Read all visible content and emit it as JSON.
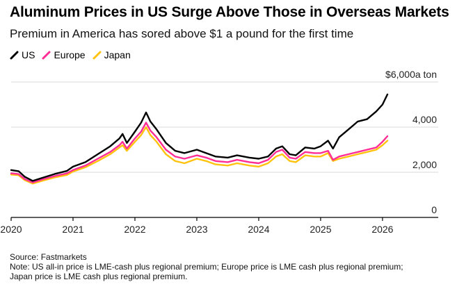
{
  "chart_data": {
    "type": "line",
    "title": "Aluminum Prices in US Surge Above Those in Overseas Markets",
    "subtitle": "Premium in America has sored above $1 a pound for the first time",
    "unit_label": "a ton",
    "ylim": [
      0,
      6000
    ],
    "xlim": [
      2020,
      2026.9
    ],
    "y_ticks": [
      {
        "value": 6000,
        "label": "$6,000"
      },
      {
        "value": 4000,
        "label": "4,000"
      },
      {
        "value": 2000,
        "label": "2,000"
      },
      {
        "value": 0,
        "label": "0"
      }
    ],
    "x_ticks": [
      {
        "value": 2020,
        "label": "2020"
      },
      {
        "value": 2021,
        "label": "2021"
      },
      {
        "value": 2022,
        "label": "2022"
      },
      {
        "value": 2023,
        "label": "2023"
      },
      {
        "value": 2024,
        "label": "2024"
      },
      {
        "value": 2025,
        "label": "2025"
      },
      {
        "value": 2026,
        "label": "2026"
      }
    ],
    "series": [
      {
        "name": "US",
        "color": "#000000",
        "points": [
          [
            2020.0,
            2100
          ],
          [
            2020.12,
            2050
          ],
          [
            2020.22,
            1800
          ],
          [
            2020.35,
            1620
          ],
          [
            2020.5,
            1750
          ],
          [
            2020.7,
            1920
          ],
          [
            2020.9,
            2060
          ],
          [
            2021.0,
            2250
          ],
          [
            2021.2,
            2450
          ],
          [
            2021.4,
            2800
          ],
          [
            2021.6,
            3150
          ],
          [
            2021.75,
            3500
          ],
          [
            2021.8,
            3700
          ],
          [
            2021.87,
            3300
          ],
          [
            2022.0,
            3800
          ],
          [
            2022.1,
            4200
          ],
          [
            2022.18,
            4650
          ],
          [
            2022.25,
            4250
          ],
          [
            2022.35,
            3900
          ],
          [
            2022.5,
            3300
          ],
          [
            2022.65,
            2950
          ],
          [
            2022.8,
            2850
          ],
          [
            2023.0,
            3000
          ],
          [
            2023.15,
            2850
          ],
          [
            2023.3,
            2700
          ],
          [
            2023.5,
            2650
          ],
          [
            2023.65,
            2750
          ],
          [
            2023.85,
            2650
          ],
          [
            2024.0,
            2600
          ],
          [
            2024.15,
            2700
          ],
          [
            2024.28,
            3050
          ],
          [
            2024.38,
            3150
          ],
          [
            2024.5,
            2800
          ],
          [
            2024.6,
            2750
          ],
          [
            2024.75,
            3100
          ],
          [
            2024.9,
            3050
          ],
          [
            2025.0,
            3150
          ],
          [
            2025.12,
            3400
          ],
          [
            2025.2,
            3050
          ],
          [
            2025.3,
            3550
          ],
          [
            2025.45,
            3900
          ],
          [
            2025.6,
            4250
          ],
          [
            2025.75,
            4350
          ],
          [
            2025.9,
            4700
          ],
          [
            2026.0,
            5000
          ],
          [
            2026.08,
            5450
          ]
        ]
      },
      {
        "name": "Europe",
        "color": "#ff2d95",
        "points": [
          [
            2020.0,
            1950
          ],
          [
            2020.12,
            1920
          ],
          [
            2020.22,
            1700
          ],
          [
            2020.35,
            1550
          ],
          [
            2020.5,
            1680
          ],
          [
            2020.7,
            1830
          ],
          [
            2020.9,
            1950
          ],
          [
            2021.0,
            2100
          ],
          [
            2021.2,
            2300
          ],
          [
            2021.4,
            2600
          ],
          [
            2021.6,
            2900
          ],
          [
            2021.75,
            3200
          ],
          [
            2021.8,
            3350
          ],
          [
            2021.87,
            3050
          ],
          [
            2022.0,
            3500
          ],
          [
            2022.1,
            3800
          ],
          [
            2022.18,
            4200
          ],
          [
            2022.25,
            3850
          ],
          [
            2022.35,
            3550
          ],
          [
            2022.5,
            3000
          ],
          [
            2022.65,
            2700
          ],
          [
            2022.8,
            2600
          ],
          [
            2023.0,
            2750
          ],
          [
            2023.15,
            2650
          ],
          [
            2023.3,
            2500
          ],
          [
            2023.5,
            2450
          ],
          [
            2023.65,
            2550
          ],
          [
            2023.85,
            2450
          ],
          [
            2024.0,
            2400
          ],
          [
            2024.15,
            2550
          ],
          [
            2024.28,
            2900
          ],
          [
            2024.38,
            3000
          ],
          [
            2024.5,
            2650
          ],
          [
            2024.6,
            2600
          ],
          [
            2024.75,
            2900
          ],
          [
            2024.9,
            2850
          ],
          [
            2025.0,
            2850
          ],
          [
            2025.12,
            2950
          ],
          [
            2025.2,
            2550
          ],
          [
            2025.3,
            2700
          ],
          [
            2025.45,
            2800
          ],
          [
            2025.6,
            2900
          ],
          [
            2025.75,
            3000
          ],
          [
            2025.9,
            3100
          ],
          [
            2026.0,
            3350
          ],
          [
            2026.08,
            3600
          ]
        ]
      },
      {
        "name": "Japan",
        "color": "#ffc20e",
        "points": [
          [
            2020.0,
            1900
          ],
          [
            2020.12,
            1870
          ],
          [
            2020.22,
            1650
          ],
          [
            2020.35,
            1500
          ],
          [
            2020.5,
            1620
          ],
          [
            2020.7,
            1770
          ],
          [
            2020.9,
            1880
          ],
          [
            2021.0,
            2030
          ],
          [
            2021.2,
            2220
          ],
          [
            2021.4,
            2500
          ],
          [
            2021.6,
            2800
          ],
          [
            2021.75,
            3100
          ],
          [
            2021.8,
            3200
          ],
          [
            2021.87,
            2950
          ],
          [
            2022.0,
            3350
          ],
          [
            2022.1,
            3650
          ],
          [
            2022.18,
            4000
          ],
          [
            2022.25,
            3650
          ],
          [
            2022.35,
            3350
          ],
          [
            2022.5,
            2800
          ],
          [
            2022.65,
            2500
          ],
          [
            2022.8,
            2400
          ],
          [
            2023.0,
            2600
          ],
          [
            2023.15,
            2500
          ],
          [
            2023.3,
            2350
          ],
          [
            2023.5,
            2300
          ],
          [
            2023.65,
            2400
          ],
          [
            2023.85,
            2300
          ],
          [
            2024.0,
            2250
          ],
          [
            2024.15,
            2400
          ],
          [
            2024.28,
            2700
          ],
          [
            2024.38,
            2800
          ],
          [
            2024.5,
            2500
          ],
          [
            2024.6,
            2450
          ],
          [
            2024.75,
            2750
          ],
          [
            2024.9,
            2700
          ],
          [
            2025.0,
            2700
          ],
          [
            2025.12,
            2850
          ],
          [
            2025.2,
            2500
          ],
          [
            2025.3,
            2600
          ],
          [
            2025.45,
            2700
          ],
          [
            2025.6,
            2800
          ],
          [
            2025.75,
            2900
          ],
          [
            2025.9,
            3000
          ],
          [
            2026.0,
            3200
          ],
          [
            2026.08,
            3400
          ]
        ]
      }
    ]
  },
  "footer": {
    "source": "Source: Fastmarkets",
    "note_line1": "Note: US all-in price is LME-cash plus regional premium; Europe price is LME cash plus regional premium;",
    "note_line2": "Japan price is LME cash plus regional premium."
  }
}
